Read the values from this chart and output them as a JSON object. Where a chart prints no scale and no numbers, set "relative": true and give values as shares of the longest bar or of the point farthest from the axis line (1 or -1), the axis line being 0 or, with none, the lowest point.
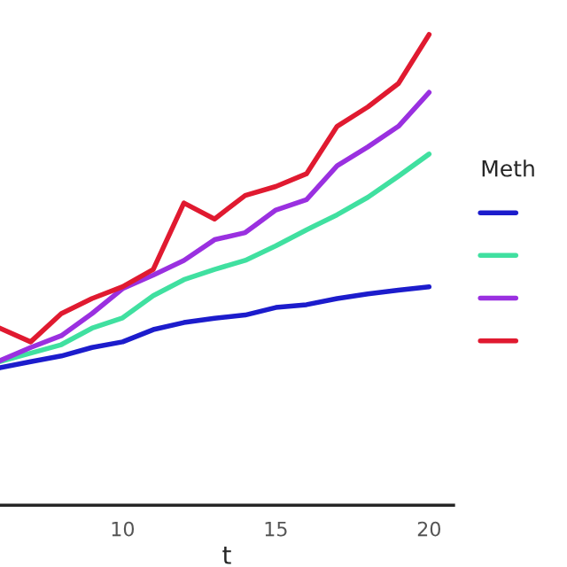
{
  "chart_data": {
    "type": "line",
    "relative": true,
    "xlabel": "t",
    "legend_title": "Meth",
    "x": [
      6,
      7,
      8,
      9,
      10,
      11,
      12,
      13,
      14,
      15,
      16,
      17,
      18,
      19,
      20
    ],
    "xlim": [
      6,
      20.8
    ],
    "xticks": [
      10,
      15,
      20
    ],
    "grid": false,
    "series": [
      {
        "color": "#1c1ccc",
        "values": [
          0.292,
          0.305,
          0.317,
          0.335,
          0.347,
          0.373,
          0.388,
          0.397,
          0.404,
          0.42,
          0.426,
          0.439,
          0.449,
          0.457,
          0.464
        ]
      },
      {
        "color": "#40e0a0",
        "values": [
          0.305,
          0.323,
          0.341,
          0.376,
          0.398,
          0.445,
          0.479,
          0.501,
          0.52,
          0.551,
          0.585,
          0.617,
          0.654,
          0.699,
          0.746
        ]
      },
      {
        "color": "#9a30e0",
        "values": [
          0.307,
          0.335,
          0.36,
          0.407,
          0.46,
          0.489,
          0.52,
          0.564,
          0.579,
          0.627,
          0.649,
          0.721,
          0.761,
          0.805,
          0.877
        ]
      },
      {
        "color": "#e01a30",
        "values": [
          0.376,
          0.347,
          0.407,
          0.439,
          0.464,
          0.501,
          0.642,
          0.608,
          0.658,
          0.677,
          0.704,
          0.805,
          0.846,
          0.896,
          1.0
        ]
      }
    ]
  }
}
